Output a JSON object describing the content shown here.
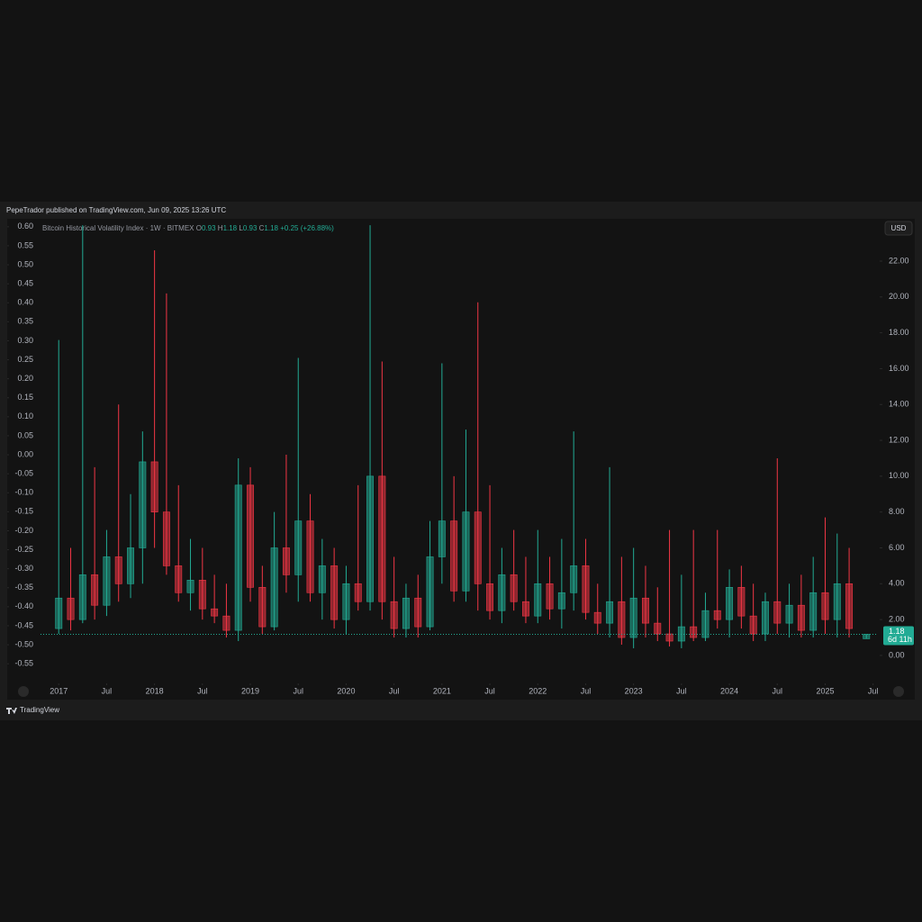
{
  "header": {
    "text": "PepeTrador published on TradingView.com, Jun 09, 2025 13:26 UTC"
  },
  "footer": {
    "brand": "TradingView"
  },
  "chart_data": {
    "type": "candlestick",
    "title": "Bitcoin Historical Volatility Index · 1W · BITMEX",
    "ohlc_legend": [
      {
        "key": "O",
        "value": "0.93"
      },
      {
        "key": "H",
        "value": "1.18"
      },
      {
        "key": "L",
        "value": "0.93"
      },
      {
        "key": "C",
        "value": "1.18"
      }
    ],
    "change": "+0.25 (+26.88%)",
    "currency": "USD",
    "countdown": "6d 11h",
    "last_price": 1.18,
    "up_color": "#22ab94",
    "down_color": "#f23645",
    "xlim": [
      2016.81,
      2025.55
    ],
    "xticks": [
      2017,
      {
        "value": 2017.5,
        "label": "Jul"
      },
      2018,
      {
        "value": 2018.5,
        "label": "Jul"
      },
      2019,
      {
        "value": 2019.5,
        "label": "Jul"
      },
      2020,
      {
        "value": 2020.5,
        "label": "Jul"
      },
      2021,
      {
        "value": 2021.5,
        "label": "Jul"
      },
      2022,
      {
        "value": 2022.5,
        "label": "Jul"
      },
      2023,
      {
        "value": 2023.5,
        "label": "Jul"
      },
      2024,
      {
        "value": 2024.5,
        "label": "Jul"
      },
      2025,
      {
        "value": 2025.5,
        "label": "Jul"
      }
    ],
    "ylim": [
      -1.46,
      24.36
    ],
    "yticks": [
      {
        "value": 0,
        "label": "0.00"
      },
      {
        "value": 2,
        "label": "2.00"
      },
      {
        "value": 4,
        "label": "4.00"
      },
      {
        "value": 6,
        "label": "6.00"
      },
      {
        "value": 8,
        "label": "8.00"
      },
      {
        "value": 10,
        "label": "10.00"
      },
      {
        "value": 12,
        "label": "12.00"
      },
      {
        "value": 14,
        "label": "14.00"
      },
      {
        "value": 16,
        "label": "16.00"
      },
      {
        "value": 18,
        "label": "18.00"
      },
      {
        "value": 20,
        "label": "20.00"
      },
      {
        "value": 22,
        "label": "22.00"
      }
    ],
    "y2lim": [
      -0.597,
      0.621
    ],
    "y2ticks": [
      {
        "value": 0.6,
        "label": "0.60"
      },
      0.55,
      {
        "value": 0.5,
        "label": "0.50"
      },
      0.45,
      {
        "value": 0.4,
        "label": "0.40"
      },
      0.35,
      {
        "value": 0.3,
        "label": "0.30"
      },
      0.25,
      {
        "value": 0.2,
        "label": "0.20"
      },
      0.15,
      {
        "value": 0.1,
        "label": "0.10"
      },
      0.05,
      {
        "value": 0,
        "label": "0.00"
      },
      -0.05,
      {
        "value": -0.1,
        "label": "-0.10"
      },
      -0.15,
      {
        "value": -0.2,
        "label": "-0.20"
      },
      -0.25,
      {
        "value": -0.3,
        "label": "-0.30"
      },
      -0.35,
      {
        "value": -0.4,
        "label": "-0.40"
      },
      -0.45,
      {
        "value": -0.5,
        "label": "-0.50"
      },
      -0.55
    ],
    "x": [
      2017.0,
      2017.125,
      2017.25,
      2017.375,
      2017.5,
      2017.625,
      2017.75,
      2017.875,
      2018.0,
      2018.125,
      2018.25,
      2018.375,
      2018.5,
      2018.625,
      2018.75,
      2018.875,
      2019.0,
      2019.125,
      2019.25,
      2019.375,
      2019.5,
      2019.625,
      2019.75,
      2019.875,
      2020.0,
      2020.125,
      2020.25,
      2020.375,
      2020.5,
      2020.625,
      2020.75,
      2020.875,
      2021.0,
      2021.125,
      2021.25,
      2021.375,
      2021.5,
      2021.625,
      2021.75,
      2021.875,
      2022.0,
      2022.125,
      2022.25,
      2022.375,
      2022.5,
      2022.625,
      2022.75,
      2022.875,
      2023.0,
      2023.125,
      2023.25,
      2023.375,
      2023.5,
      2023.625,
      2023.75,
      2023.875,
      2024.0,
      2024.125,
      2024.25,
      2024.375,
      2024.5,
      2024.625,
      2024.75,
      2024.875,
      2025.0,
      2025.125,
      2025.25,
      2025.43
    ],
    "open": [
      1.5,
      3.2,
      2.0,
      4.5,
      2.8,
      5.5,
      4.0,
      6.0,
      10.8,
      8.0,
      5.0,
      3.5,
      4.2,
      2.6,
      2.2,
      1.4,
      9.5,
      3.8,
      1.6,
      6.0,
      4.5,
      7.5,
      3.5,
      5.0,
      2.0,
      4.0,
      3.0,
      10.0,
      3.0,
      1.5,
      3.2,
      1.6,
      5.5,
      7.5,
      3.6,
      8.0,
      4.0,
      2.5,
      4.5,
      3.0,
      2.2,
      4.0,
      2.6,
      3.5,
      5.0,
      2.4,
      1.8,
      3.0,
      1.0,
      3.2,
      1.8,
      1.2,
      0.8,
      1.6,
      1.0,
      2.5,
      2.0,
      3.8,
      2.2,
      1.2,
      3.0,
      1.8,
      2.8,
      1.4,
      3.5,
      2.0,
      4.0,
      0.93
    ],
    "high": [
      17.6,
      6.0,
      24.0,
      10.5,
      7.0,
      14.0,
      9.0,
      12.5,
      22.6,
      20.2,
      9.5,
      6.5,
      6.0,
      4.5,
      4.0,
      11.0,
      10.5,
      5.0,
      8.0,
      11.2,
      16.6,
      9.0,
      6.5,
      6.0,
      5.0,
      9.5,
      24.0,
      16.4,
      5.5,
      4.0,
      4.5,
      7.5,
      16.3,
      10.0,
      12.6,
      19.7,
      9.5,
      6.0,
      7.0,
      5.5,
      7.0,
      5.5,
      6.5,
      12.5,
      6.5,
      4.0,
      10.5,
      5.5,
      6.0,
      5.0,
      3.8,
      7.0,
      4.5,
      7.0,
      3.5,
      7.0,
      4.8,
      5.0,
      4.0,
      3.5,
      11.0,
      4.0,
      4.5,
      5.5,
      7.7,
      6.8,
      6.0,
      1.18
    ],
    "low": [
      1.2,
      1.4,
      1.8,
      2.0,
      2.2,
      3.0,
      3.2,
      4.0,
      6.0,
      4.5,
      3.0,
      2.5,
      2.0,
      1.8,
      1.0,
      0.8,
      3.0,
      1.2,
      1.4,
      3.5,
      3.0,
      3.0,
      2.0,
      1.5,
      1.2,
      2.5,
      2.5,
      2.0,
      1.0,
      1.0,
      1.0,
      1.4,
      4.0,
      3.0,
      3.0,
      2.5,
      2.0,
      1.8,
      2.5,
      1.8,
      1.8,
      2.0,
      1.5,
      2.5,
      2.0,
      1.2,
      1.0,
      0.6,
      0.4,
      1.0,
      0.8,
      0.5,
      0.4,
      0.8,
      0.8,
      1.5,
      1.0,
      1.5,
      0.8,
      0.8,
      1.2,
      1.0,
      1.0,
      1.0,
      1.2,
      1.0,
      1.0,
      0.93
    ],
    "close": [
      3.2,
      2.0,
      4.5,
      2.8,
      5.5,
      4.0,
      6.0,
      10.8,
      8.0,
      5.0,
      3.5,
      4.2,
      2.6,
      2.2,
      1.4,
      9.5,
      3.8,
      1.6,
      6.0,
      4.5,
      7.5,
      3.5,
      5.0,
      2.0,
      4.0,
      3.0,
      10.0,
      3.0,
      1.5,
      3.2,
      1.6,
      5.5,
      7.5,
      3.6,
      8.0,
      4.0,
      2.5,
      4.5,
      3.0,
      2.2,
      4.0,
      2.6,
      3.5,
      5.0,
      2.4,
      1.8,
      3.0,
      1.0,
      3.2,
      1.8,
      1.2,
      0.8,
      1.6,
      1.0,
      2.5,
      2.0,
      3.8,
      2.2,
      1.2,
      3.0,
      1.8,
      2.8,
      1.4,
      3.5,
      2.0,
      4.0,
      1.5,
      1.18
    ]
  }
}
